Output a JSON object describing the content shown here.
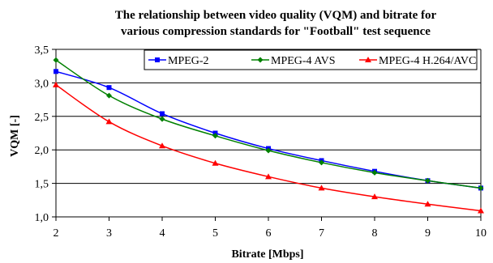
{
  "chart_data": {
    "type": "line",
    "title_lines": [
      "The relationship between video quality (VQM) and bitrate for",
      "various compression standards for \"Football\" test sequence"
    ],
    "xlabel": "Bitrate [Mbps]",
    "ylabel": "VQM [-]",
    "x": [
      2,
      3,
      4,
      5,
      6,
      7,
      8,
      9,
      10
    ],
    "xlim": [
      2,
      10
    ],
    "ylim": [
      1.0,
      3.5
    ],
    "x_ticks": [
      "2",
      "3",
      "4",
      "5",
      "6",
      "7",
      "8",
      "9",
      "10"
    ],
    "y_ticks": [
      "1,0",
      "1,5",
      "2,0",
      "2,5",
      "3,0",
      "3,5"
    ],
    "y_tick_values": [
      1.0,
      1.5,
      2.0,
      2.5,
      3.0,
      3.5
    ],
    "grid": "horizontal",
    "legend_position": "top-right",
    "series": [
      {
        "name": "MPEG-2",
        "color": "#0000ff",
        "marker": "square",
        "values": [
          3.17,
          2.93,
          2.54,
          2.25,
          2.02,
          1.84,
          1.68,
          1.54,
          1.43
        ]
      },
      {
        "name": "MPEG-4 AVS",
        "color": "#008000",
        "marker": "diamond",
        "values": [
          3.34,
          2.81,
          2.46,
          2.21,
          1.99,
          1.81,
          1.66,
          1.54,
          1.43
        ]
      },
      {
        "name": "MPEG-4 H.264/AVC",
        "color": "#ff0000",
        "marker": "triangle",
        "values": [
          2.97,
          2.42,
          2.06,
          1.8,
          1.6,
          1.43,
          1.3,
          1.19,
          1.09
        ]
      }
    ]
  }
}
